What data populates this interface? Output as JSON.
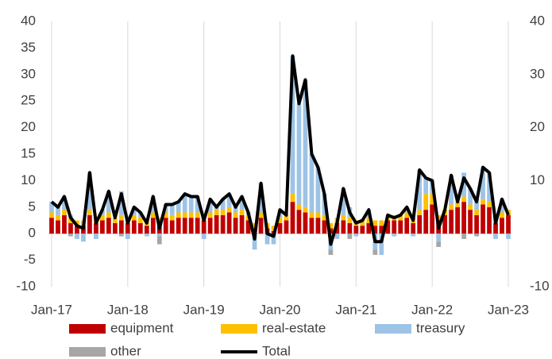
{
  "chart_data": {
    "type": "bar",
    "stacked": true,
    "categories": [
      "Jan-17",
      null,
      null,
      null,
      null,
      null,
      null,
      null,
      null,
      null,
      null,
      null,
      "Jan-18",
      null,
      null,
      null,
      null,
      null,
      null,
      null,
      null,
      null,
      null,
      null,
      "Jan-19",
      null,
      null,
      null,
      null,
      null,
      null,
      null,
      null,
      null,
      null,
      null,
      "Jan-20",
      null,
      null,
      null,
      null,
      null,
      null,
      null,
      null,
      null,
      null,
      null,
      "Jan-21",
      null,
      null,
      null,
      null,
      null,
      null,
      null,
      null,
      null,
      null,
      null,
      "Jan-22",
      null,
      null,
      null,
      null,
      null,
      null,
      null,
      null,
      null,
      null,
      null,
      "Jan-23"
    ],
    "series": [
      {
        "name": "equipment",
        "color": "#c00000",
        "values": [
          3,
          2.5,
          3.5,
          2,
          1.5,
          1.5,
          3.5,
          2,
          2.5,
          3,
          2,
          2.5,
          2,
          2.5,
          2,
          1.5,
          3,
          2,
          3,
          2.5,
          3,
          3,
          3,
          3,
          2.5,
          3,
          3.5,
          3.5,
          4,
          3,
          3.5,
          2.5,
          1,
          3,
          1,
          0.5,
          2,
          2.5,
          6,
          4.5,
          4,
          3,
          3,
          2.5,
          1,
          2,
          2.5,
          2,
          1.5,
          1.5,
          2,
          1.5,
          1.5,
          2.5,
          2.5,
          2.5,
          3,
          2,
          3.5,
          4.5,
          5.5,
          2.5,
          3.5,
          4.5,
          5,
          6,
          4.5,
          3.5,
          5.5,
          5,
          2,
          3,
          3.5
        ]
      },
      {
        "name": "real-estate",
        "color": "#ffc000",
        "values": [
          1,
          1,
          1,
          1,
          1,
          1,
          1,
          1,
          1,
          1,
          1,
          1,
          1,
          1,
          1,
          1,
          1,
          1,
          1,
          1,
          1,
          1,
          1,
          1,
          1,
          1,
          1,
          1,
          1,
          1,
          1,
          1,
          1,
          1,
          1,
          1,
          1,
          1,
          1.5,
          1,
          1,
          1,
          1,
          1,
          1,
          1,
          1,
          1,
          1,
          1,
          1,
          1,
          1,
          1,
          1,
          1,
          1,
          1,
          1,
          3,
          2,
          1,
          1,
          1,
          1,
          1,
          1,
          1,
          1,
          1,
          1,
          1,
          1
        ]
      },
      {
        "name": "treasury",
        "color": "#9dc3e6",
        "values": [
          2,
          1.5,
          2.5,
          0.5,
          -1,
          -1.5,
          7,
          -1,
          1,
          4,
          0,
          4.5,
          -1,
          1.5,
          1,
          -0.5,
          3,
          -0.5,
          1.5,
          2,
          2,
          3.5,
          3,
          3,
          -1,
          2.5,
          0.5,
          2,
          2.5,
          1,
          2.5,
          0.5,
          -3,
          5.5,
          -2,
          -2,
          1.5,
          0,
          26,
          19,
          24,
          11,
          8.5,
          4,
          -3,
          -1,
          5,
          2,
          -0.5,
          0,
          1.5,
          -3,
          -4,
          0,
          -0.5,
          0,
          1,
          -0.5,
          7.5,
          3,
          2.5,
          -1.5,
          0,
          5.5,
          0,
          4.5,
          3,
          2,
          6,
          5.5,
          -1,
          2.5,
          -1
        ]
      },
      {
        "name": "other",
        "color": "#a6a6a6",
        "values": [
          0,
          0,
          0,
          -0.5,
          0,
          0,
          0,
          0,
          0,
          0,
          0,
          -0.5,
          0,
          0,
          0,
          0,
          0,
          -1.5,
          0,
          0,
          0,
          0,
          0,
          0,
          0,
          0,
          0,
          0,
          0,
          0,
          0,
          0,
          0,
          0,
          0,
          0,
          0,
          0,
          0,
          0,
          0,
          0,
          0,
          0,
          -1,
          0,
          0,
          -1,
          0,
          0,
          0,
          -1,
          0,
          0,
          0,
          0,
          0,
          0,
          0,
          0,
          0,
          -1,
          0,
          0,
          0,
          -1,
          0,
          -0.5,
          0,
          0,
          0,
          0,
          0
        ]
      },
      {
        "name": "Total",
        "color": "#000000",
        "type": "line",
        "values": [
          6,
          5,
          7,
          3,
          1.5,
          1,
          11.5,
          2,
          4.5,
          8,
          3,
          7.5,
          2,
          5,
          4,
          2,
          7,
          1,
          5.5,
          5.5,
          6,
          7.5,
          7,
          7,
          2.5,
          6.5,
          5,
          6.5,
          7.5,
          5,
          7,
          4,
          -1,
          9.5,
          0,
          -0.5,
          4.5,
          3.5,
          33.5,
          24.5,
          29,
          15,
          12.5,
          7.5,
          -2,
          2,
          8.5,
          4,
          2,
          2.5,
          4.5,
          -1.5,
          -1.5,
          3.5,
          3,
          3.5,
          5,
          2.5,
          12,
          10.5,
          10,
          1,
          4.5,
          11,
          6,
          10.5,
          8.5,
          6,
          12.5,
          11.5,
          2,
          6.5,
          3.5
        ]
      }
    ],
    "ylim": [
      -10,
      40
    ],
    "yticks": [
      -10,
      -5,
      0,
      5,
      10,
      15,
      20,
      25,
      30,
      35,
      40
    ],
    "y2lim": [
      -10,
      40
    ],
    "y2ticks": [
      -10,
      10,
      20,
      30,
      40
    ],
    "grid": "x",
    "legend": "bottom"
  }
}
